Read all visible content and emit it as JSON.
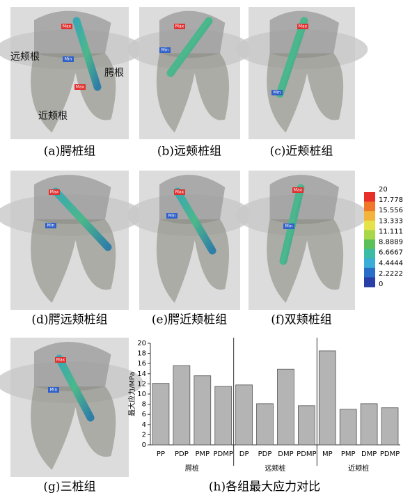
{
  "panels": [
    {
      "caption": "(a)腭桩组",
      "labels": [
        "远颊根",
        "腭根",
        "近颊根",
        "Max",
        "Max",
        "Min"
      ]
    },
    {
      "caption": "(b)远颊桩组",
      "labels": [
        "Max",
        "Min"
      ]
    },
    {
      "caption": "(c)近颊桩组",
      "labels": [
        "Max",
        "Min"
      ]
    },
    {
      "caption": "(d)腭远颊桩组",
      "labels": [
        "Max",
        "Min"
      ]
    },
    {
      "caption": "(e)腭近颊桩组",
      "labels": [
        "Max",
        "Min"
      ]
    },
    {
      "caption": "(f)双颊桩组",
      "labels": [
        "Max",
        "Min"
      ]
    },
    {
      "caption": "(g)三桩组",
      "labels": [
        "Max",
        "Min"
      ]
    }
  ],
  "colorbar": {
    "ticks": [
      20,
      17.778,
      15.556,
      13.333,
      11.111,
      8.8889,
      6.6667,
      4.4444,
      2.2222,
      0
    ],
    "colors": [
      "#e8302a",
      "#f0782a",
      "#f2b43a",
      "#e6e24a",
      "#a8d84a",
      "#5cc05a",
      "#3cbca4",
      "#3aaed6",
      "#2a6ec8",
      "#2a3ea8"
    ]
  },
  "chart_data": {
    "type": "bar",
    "caption": "(h)各组最大应力对比",
    "y_label": "最大应力/MPa",
    "color": "#b4b4b4",
    "groups": [
      {
        "name": "腭桩",
        "categories": [
          "PP",
          "PDP",
          "PMP",
          "PDMP"
        ],
        "values": [
          12.1,
          15.6,
          13.6,
          11.5
        ]
      },
      {
        "name": "远颊桩",
        "categories": [
          "DP",
          "PDP",
          "DMP",
          "PDMP"
        ],
        "values": [
          11.8,
          8.1,
          14.9,
          7.7
        ]
      },
      {
        "name": "近颊桩",
        "categories": [
          "MP",
          "PMP",
          "DMP",
          "PDMP"
        ],
        "values": [
          18.5,
          7.0,
          8.1,
          7.3
        ]
      }
    ],
    "ylim": [
      0,
      20
    ],
    "yticks": [
      0,
      2,
      4,
      6,
      8,
      10,
      12,
      14,
      16,
      18,
      20
    ]
  }
}
